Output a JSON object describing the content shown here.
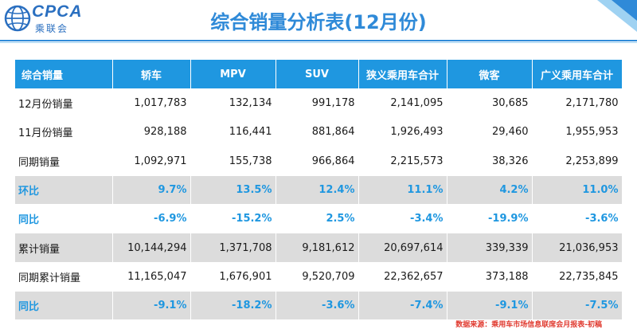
{
  "header": {
    "logo_text": "CPCA",
    "logo_cn": "乘联会",
    "title": "综合销量分析表(12月份)"
  },
  "colors": {
    "header_bg": "#1f97e0",
    "title": "#2f8ad8",
    "rate_text": "#1f97e0",
    "alt_row": "#dcdcdc",
    "source_text": "#e03a2f"
  },
  "table": {
    "columns": [
      "综合销量",
      "轿车",
      "MPV",
      "SUV",
      "狭义乘用车合计",
      "微客",
      "广义乘用车合计"
    ],
    "rows": [
      {
        "label": "12月份销量",
        "values": [
          "1,017,783",
          "132,134",
          "991,178",
          "2,141,095",
          "30,685",
          "2,171,780"
        ]
      },
      {
        "label": "11月份销量",
        "values": [
          "928,188",
          "116,441",
          "881,864",
          "1,926,493",
          "29,460",
          "1,955,953"
        ]
      },
      {
        "label": "同期销量",
        "values": [
          "1,092,971",
          "155,738",
          "966,864",
          "2,215,573",
          "38,326",
          "2,253,899"
        ]
      },
      {
        "label": "环比",
        "values": [
          "9.7%",
          "13.5%",
          "12.4%",
          "11.1%",
          "4.2%",
          "11.0%"
        ]
      },
      {
        "label": "同比",
        "values": [
          "-6.9%",
          "-15.2%",
          "2.5%",
          "-3.4%",
          "-19.9%",
          "-3.6%"
        ]
      },
      {
        "label": "累计销量",
        "values": [
          "10,144,294",
          "1,371,708",
          "9,181,612",
          "20,697,614",
          "339,339",
          "21,036,953"
        ]
      },
      {
        "label": "同期累计销量",
        "values": [
          "11,165,047",
          "1,676,901",
          "9,520,709",
          "22,362,657",
          "373,188",
          "22,735,845"
        ]
      },
      {
        "label": "同比",
        "values": [
          "-9.1%",
          "-18.2%",
          "-3.6%",
          "-7.4%",
          "-9.1%",
          "-7.5%"
        ]
      }
    ]
  },
  "footer": {
    "source": "数据来源：乘用车市场信息联席会月报表-初稿"
  }
}
